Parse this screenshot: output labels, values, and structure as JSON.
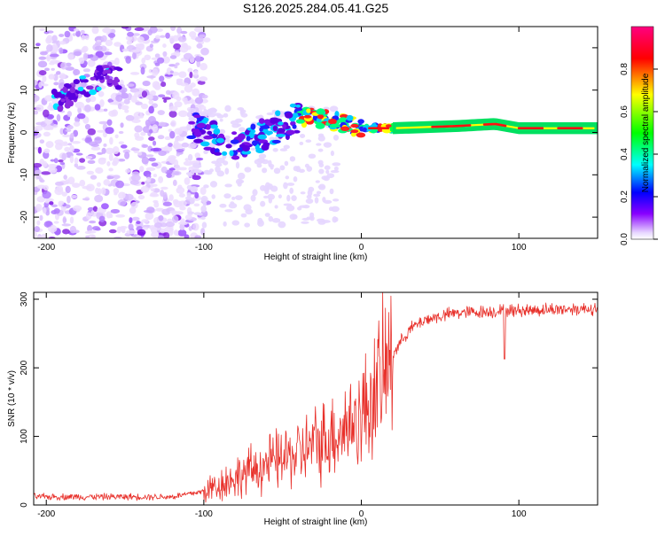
{
  "title": "S126.2025.284.05.41.G25",
  "chart_data": [
    {
      "type": "heatmap",
      "title": "S126.2025.284.05.41.G25",
      "xlabel": "Height of straight line (km)",
      "ylabel": "Frequency (Hz)",
      "xlim": [
        -208,
        150
      ],
      "ylim": [
        -25,
        25
      ],
      "xticks": [
        -200,
        -100,
        0,
        100
      ],
      "yticks": [
        -20,
        -10,
        0,
        10,
        20
      ],
      "colorbar": {
        "label": "Normalized spectral amplitude",
        "range": [
          0,
          1
        ],
        "ticks": [
          "0.0",
          "0.2",
          "0.4",
          "0.6",
          "0.8"
        ],
        "stops": [
          "#ffffff",
          "#8800ff",
          "#0000ff",
          "#00ffff",
          "#00ff00",
          "#ffff00",
          "#ff0000",
          "#ff0080"
        ]
      },
      "ridge": [
        {
          "x": -190,
          "f": 8
        },
        {
          "x": -160,
          "f": 14
        },
        {
          "x": -100,
          "f": 0
        },
        {
          "x": -85,
          "f": -3
        },
        {
          "x": -70,
          "f": -2
        },
        {
          "x": -50,
          "f": 2
        },
        {
          "x": -35,
          "f": 4
        },
        {
          "x": -20,
          "f": 3
        },
        {
          "x": 0,
          "f": 1
        },
        {
          "x": 20,
          "f": 1
        },
        {
          "x": 60,
          "f": 1.5
        },
        {
          "x": 85,
          "f": 2
        },
        {
          "x": 100,
          "f": 1
        },
        {
          "x": 150,
          "f": 1
        }
      ]
    },
    {
      "type": "line",
      "xlabel": "Height of straight line (km)",
      "ylabel": "SNR (10 * v/v)",
      "xlim": [
        -208,
        150
      ],
      "ylim": [
        0,
        310
      ],
      "xticks": [
        -200,
        -100,
        0,
        100
      ],
      "yticks": [
        0,
        100,
        200,
        300
      ],
      "series": [
        {
          "name": "SNR",
          "color": "#e8302a",
          "trend": [
            {
              "x": -208,
              "y": 12
            },
            {
              "x": -120,
              "y": 12
            },
            {
              "x": -100,
              "y": 20
            },
            {
              "x": -80,
              "y": 40
            },
            {
              "x": -60,
              "y": 60
            },
            {
              "x": -40,
              "y": 75
            },
            {
              "x": -20,
              "y": 100
            },
            {
              "x": 0,
              "y": 130
            },
            {
              "x": 10,
              "y": 170
            },
            {
              "x": 20,
              "y": 220
            },
            {
              "x": 30,
              "y": 255
            },
            {
              "x": 40,
              "y": 270
            },
            {
              "x": 60,
              "y": 280
            },
            {
              "x": 90,
              "y": 283
            },
            {
              "x": 120,
              "y": 285
            },
            {
              "x": 150,
              "y": 287
            }
          ],
          "dip": {
            "x": 91,
            "y": 213
          }
        }
      ]
    }
  ]
}
